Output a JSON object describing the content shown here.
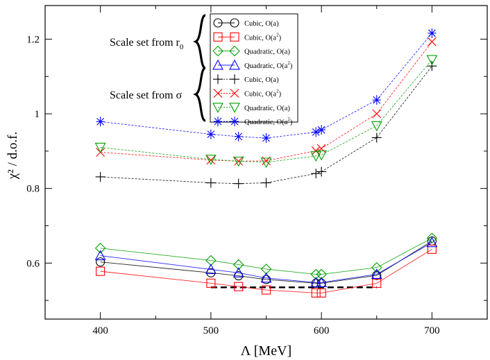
{
  "chart_data": {
    "type": "line",
    "xlabel": "Λ   [MeV]",
    "ylabel": "χ² / d.o.f.",
    "xlim": [
      350,
      750
    ],
    "ylim": [
      0.45,
      1.29
    ],
    "xticks": [
      400,
      500,
      600,
      700
    ],
    "yticks": [
      0.6,
      0.8,
      1,
      1.2
    ],
    "ytick_labels": [
      "0.6",
      "0.8",
      "1",
      "1.2"
    ],
    "grid": false,
    "legend_position": "top-center",
    "x": [
      400,
      500,
      525,
      550,
      595,
      600,
      650,
      700
    ],
    "groups": [
      {
        "label": "Scale set from r",
        "label_sub": "0",
        "series_indices": [
          0,
          1,
          2,
          3
        ]
      },
      {
        "label": "Scale set from σ",
        "label_sub": "",
        "series_indices": [
          4,
          5,
          6,
          7
        ]
      }
    ],
    "series": [
      {
        "name": "Cubic, O(a)",
        "name_sup": "",
        "color": "#000000",
        "marker": "circle",
        "dash": false,
        "values": [
          0.603,
          0.574,
          0.566,
          0.556,
          0.546,
          0.546,
          0.567,
          0.659
        ]
      },
      {
        "name": "Cubic, O(a",
        "name_sup": "2",
        "color": "#ff0000",
        "marker": "square",
        "dash": false,
        "values": [
          0.578,
          0.546,
          0.537,
          0.528,
          0.52,
          0.52,
          0.546,
          0.637
        ]
      },
      {
        "name": "Quadratic, O(a)",
        "name_sup": "",
        "color": "#00a000",
        "marker": "diamond",
        "dash": false,
        "values": [
          0.64,
          0.607,
          0.596,
          0.584,
          0.57,
          0.57,
          0.588,
          0.667
        ]
      },
      {
        "name": "Quadratic, O(a",
        "name_sup": "2",
        "color": "#0000ff",
        "marker": "triangle-up",
        "dash": false,
        "values": [
          0.62,
          0.583,
          0.574,
          0.56,
          0.548,
          0.548,
          0.57,
          0.655
        ]
      },
      {
        "name": "Cubic, O(a)",
        "name_sup": "",
        "color": "#000000",
        "marker": "plus",
        "dash": true,
        "values": [
          0.831,
          0.815,
          0.813,
          0.815,
          0.84,
          0.845,
          0.936,
          1.128
        ]
      },
      {
        "name": "Cubic, O(a",
        "name_sup": "2",
        "color": "#ff0000",
        "marker": "x",
        "dash": true,
        "values": [
          0.897,
          0.876,
          0.873,
          0.874,
          0.901,
          0.907,
          1.0,
          1.193
        ]
      },
      {
        "name": "Quadratic, O(a)",
        "name_sup": "",
        "color": "#00a000",
        "marker": "triangle-down",
        "dash": true,
        "values": [
          0.91,
          0.878,
          0.873,
          0.87,
          0.887,
          0.89,
          0.968,
          1.145
        ]
      },
      {
        "name": "Quadratic, O(a",
        "name_sup": "2",
        "color": "#0000ff",
        "marker": "asterisk",
        "dash": true,
        "values": [
          0.979,
          0.945,
          0.939,
          0.935,
          0.951,
          0.957,
          1.037,
          1.216
        ]
      }
    ],
    "reference_line": {
      "x": [
        500,
        650
      ],
      "y": 0.535,
      "color": "#000000",
      "dash": true
    }
  }
}
